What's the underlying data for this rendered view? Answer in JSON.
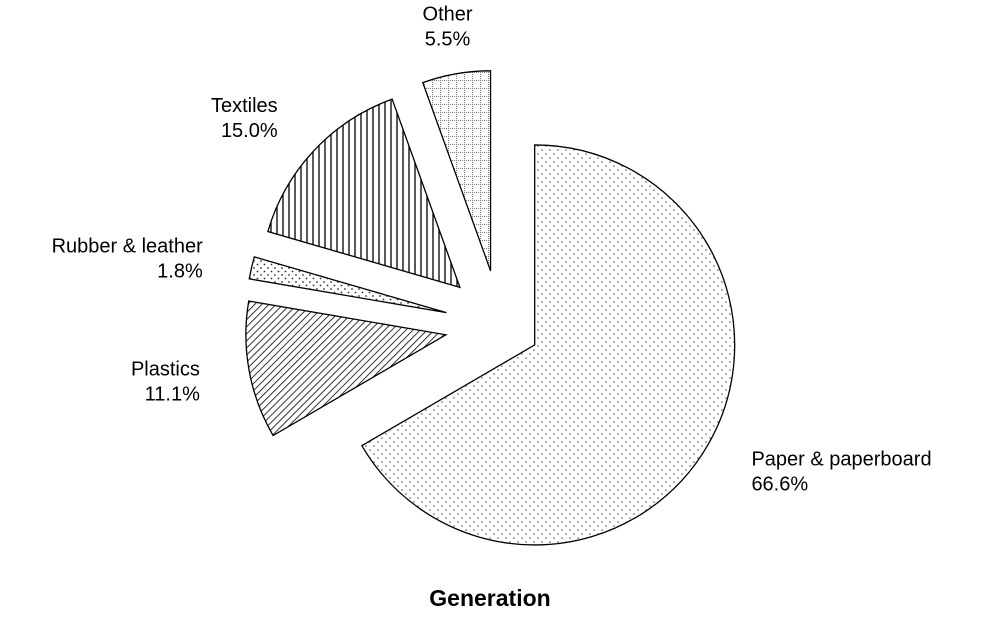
{
  "chart_data": {
    "type": "pie",
    "title": "Generation",
    "categories": [
      "Paper & paperboard",
      "Plastics",
      "Rubber & leather",
      "Textiles",
      "Other"
    ],
    "values": [
      66.6,
      11.1,
      1.8,
      15.0,
      5.5
    ],
    "value_labels": [
      "66.6%",
      "11.1%",
      "1.8%",
      "15.0%",
      "5.5%"
    ]
  }
}
